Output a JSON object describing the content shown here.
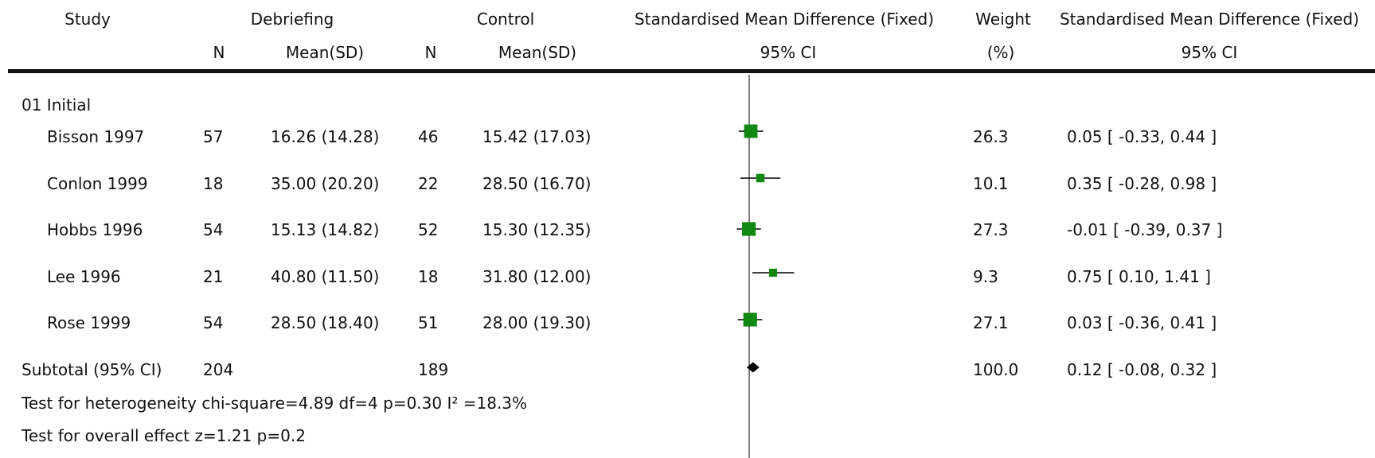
{
  "header": {
    "study": "Study",
    "group1": "Debriefing",
    "group2": "Control",
    "n1": "N",
    "mean1": "Mean(SD)",
    "n2": "N",
    "mean2": "Mean(SD)",
    "effect_title": "Standardised Mean Difference (Fixed)",
    "effect_ci": "95% CI",
    "weight_title": "Weight",
    "weight_unit": "(%)",
    "result_title": "Standardised Mean Difference (Fixed)",
    "result_ci": "95% CI"
  },
  "group_label": "01 Initial",
  "rows": [
    {
      "study": "Bisson 1997",
      "n1": "57",
      "mean1": "16.26 (14.28)",
      "n2": "46",
      "mean2": "15.42 (17.03)",
      "weight": "26.3",
      "ci_text": "0.05 [ -0.33, 0.44 ]"
    },
    {
      "study": "Conlon 1999",
      "n1": "18",
      "mean1": "35.00 (20.20)",
      "n2": "22",
      "mean2": "28.50 (16.70)",
      "weight": "10.1",
      "ci_text": "0.35 [ -0.28, 0.98 ]"
    },
    {
      "study": "Hobbs 1996",
      "n1": "54",
      "mean1": "15.13 (14.82)",
      "n2": "52",
      "mean2": "15.30 (12.35)",
      "weight": "27.3",
      "ci_text": "-0.01 [ -0.39, 0.37 ]"
    },
    {
      "study": "Lee 1996",
      "n1": "21",
      "mean1": "40.80 (11.50)",
      "n2": "18",
      "mean2": "31.80 (12.00)",
      "weight": "9.3",
      "ci_text": "0.75 [ 0.10, 1.41 ]"
    },
    {
      "study": "Rose 1999",
      "n1": "54",
      "mean1": "28.50 (18.40)",
      "n2": "51",
      "mean2": "28.00 (19.30)",
      "weight": "27.1",
      "ci_text": "0.03 [ -0.36, 0.41 ]"
    }
  ],
  "subtotal": {
    "label": "Subtotal (95% CI)",
    "n1": "204",
    "n2": "189",
    "weight": "100.0",
    "ci_text": "0.12 [ -0.08, 0.32 ]"
  },
  "footer": {
    "heterogeneity": "Test for heterogeneity chi-square=4.89 df=4 p=0.30 I² =18.3%",
    "overall": "Test for overall effect z=1.21    p=0.2"
  },
  "colors": {
    "square": "#118811",
    "line": "#000000",
    "diamond": "#000000",
    "axis": "#555555"
  },
  "chart_data": {
    "type": "forest",
    "null_value": 0,
    "studies": [
      {
        "name": "Bisson 1997",
        "estimate": 0.05,
        "lower": -0.33,
        "upper": 0.44,
        "weight": 26.3
      },
      {
        "name": "Conlon 1999",
        "estimate": 0.35,
        "lower": -0.28,
        "upper": 0.98,
        "weight": 10.1
      },
      {
        "name": "Hobbs 1996",
        "estimate": -0.01,
        "lower": -0.39,
        "upper": 0.37,
        "weight": 27.3
      },
      {
        "name": "Lee 1996",
        "estimate": 0.75,
        "lower": 0.1,
        "upper": 1.41,
        "weight": 9.3
      },
      {
        "name": "Rose 1999",
        "estimate": 0.03,
        "lower": -0.36,
        "upper": 0.41,
        "weight": 27.1
      }
    ],
    "pooled": {
      "estimate": 0.12,
      "lower": -0.08,
      "upper": 0.32,
      "weight": 100.0
    }
  }
}
